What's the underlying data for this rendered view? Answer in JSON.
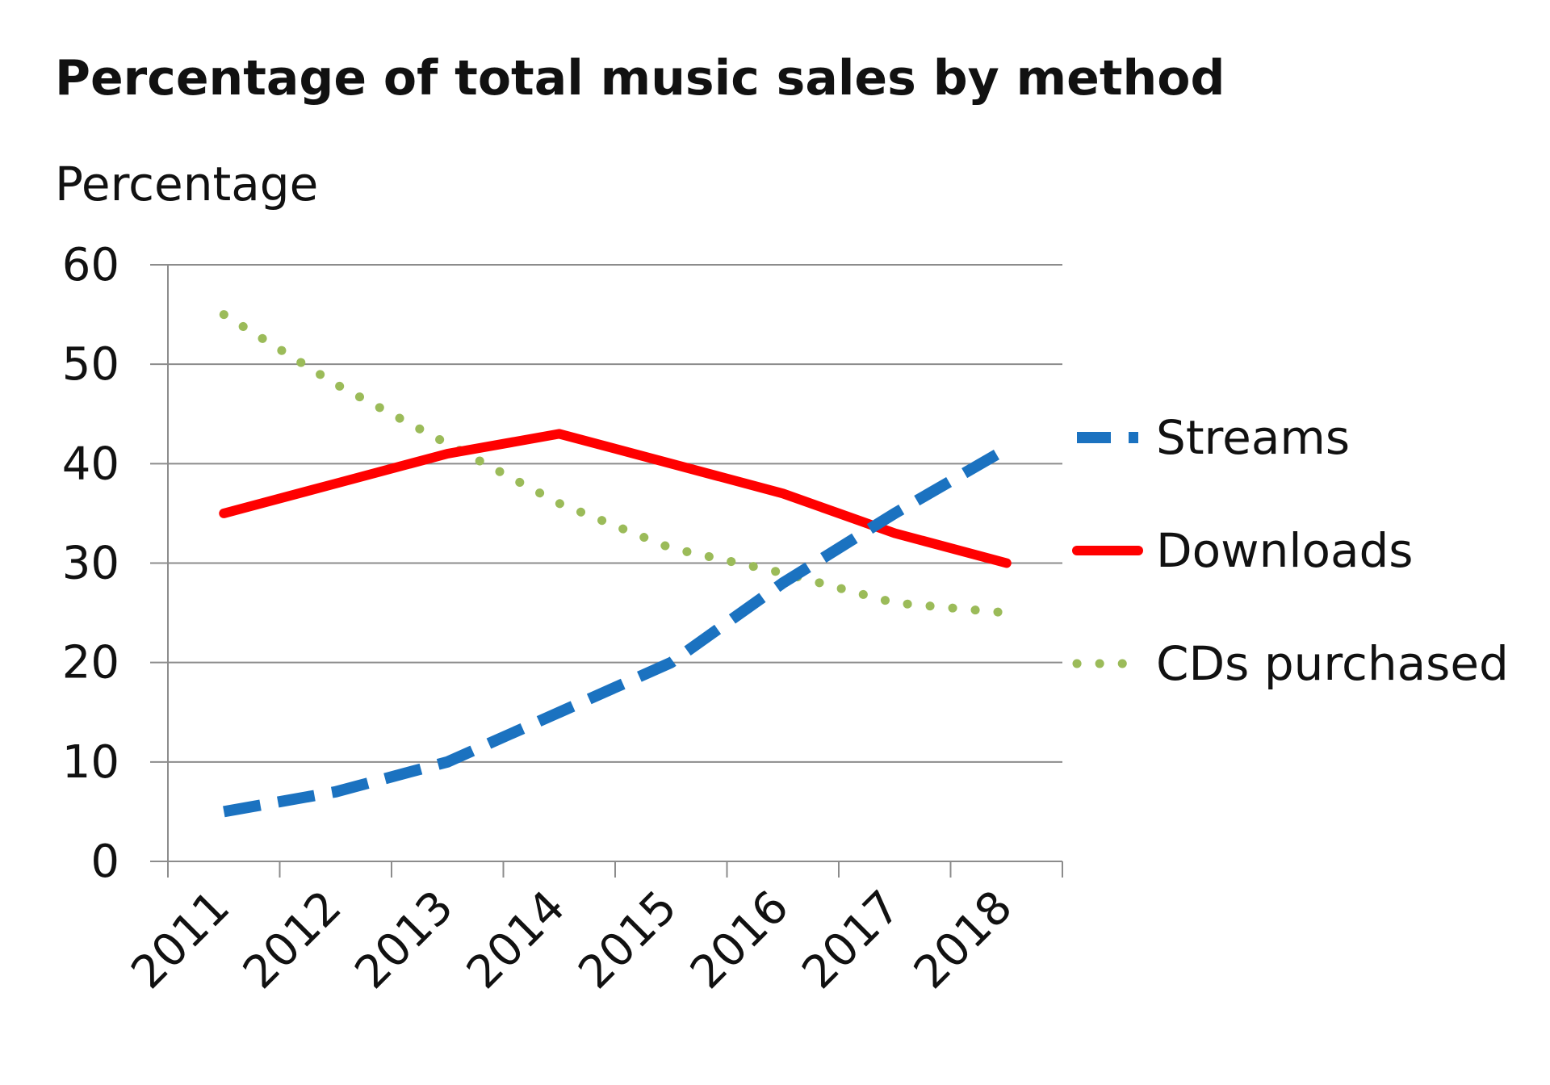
{
  "chart_data": {
    "type": "line",
    "title": "Percentage of total music sales by method",
    "ylabel": "Percentage",
    "xlabel": "",
    "categories": [
      "2011",
      "2012",
      "2013",
      "2014",
      "2015",
      "2016",
      "2017",
      "2018"
    ],
    "ylim": [
      0,
      60
    ],
    "yticks": [
      "0",
      "10",
      "20",
      "30",
      "40",
      "50",
      "60"
    ],
    "grid": "horizontal",
    "legend_position": "right",
    "series": [
      {
        "name": "Streams",
        "values": [
          5,
          7,
          10,
          15,
          20,
          28,
          35,
          41.5
        ],
        "color": "#1b72c0",
        "style": "dashed"
      },
      {
        "name": "Downloads",
        "values": [
          35,
          38,
          41,
          43,
          40,
          37,
          33,
          30
        ],
        "color": "#ff0000",
        "style": "solid"
      },
      {
        "name": "CDs purchased",
        "values": [
          55,
          48,
          42,
          36,
          31.5,
          29,
          26,
          25
        ],
        "color": "#9bbb59",
        "style": "dotted"
      }
    ]
  }
}
